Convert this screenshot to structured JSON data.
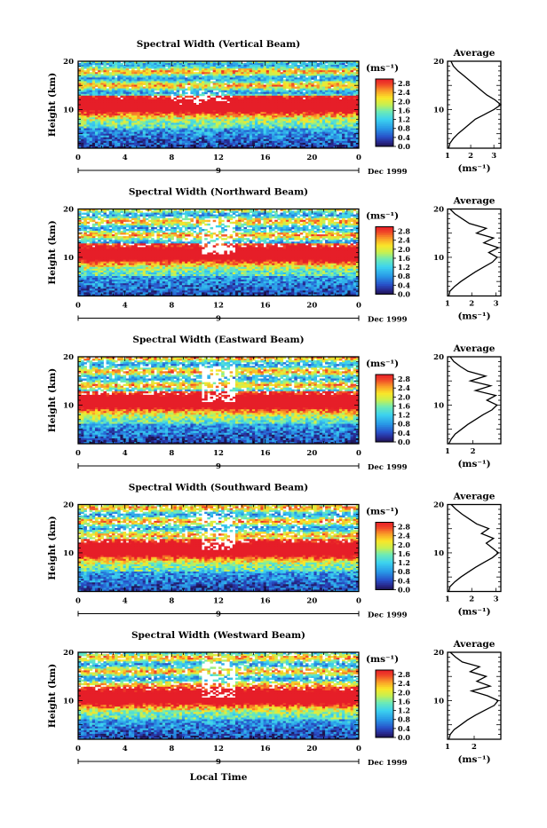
{
  "figure": {
    "x_axis_label": "Local Time",
    "date_label": "Dec 1999",
    "day_marker": "9",
    "y_axis_label": "Height (km)",
    "avg_title": "Average",
    "unit_label": "(ms⁻¹)"
  },
  "chart_data": [
    {
      "type": "heatmap",
      "title": "Spectral Width (Vertical Beam)",
      "x_ticks": [
        "0",
        "4",
        "8",
        "12",
        "16",
        "20",
        "0"
      ],
      "y_ticks": [
        "20",
        "10"
      ],
      "ylim": [
        2,
        20
      ],
      "xlim": [
        0,
        24
      ],
      "colorbar": {
        "labels": [
          "2.8",
          "2.4",
          "2.0",
          "1.6",
          "1.2",
          "0.8",
          "0.4",
          "0.0"
        ],
        "range": [
          0,
          3.0
        ]
      },
      "profile": {
        "title": "Average",
        "xlabel": "(ms⁻¹)",
        "x_ticks": [
          "1",
          "2",
          "3"
        ],
        "xlim": [
          1,
          3.3
        ],
        "height": [
          2,
          3,
          4,
          5,
          6,
          7,
          8,
          9,
          10,
          11,
          12,
          13,
          14,
          15,
          16,
          17,
          18,
          19,
          20
        ],
        "width": [
          1.05,
          1.1,
          1.25,
          1.45,
          1.7,
          1.95,
          2.2,
          2.6,
          3.0,
          3.3,
          3.05,
          2.7,
          2.45,
          2.2,
          1.95,
          1.7,
          1.45,
          1.25,
          1.15
        ]
      }
    },
    {
      "type": "heatmap",
      "title": "Spectral Width (Northward Beam)",
      "x_ticks": [
        "0",
        "4",
        "8",
        "12",
        "16",
        "20",
        "0"
      ],
      "y_ticks": [
        "20",
        "10"
      ],
      "ylim": [
        2,
        20
      ],
      "xlim": [
        0,
        24
      ],
      "colorbar": {
        "labels": [
          "2.8",
          "2.4",
          "2.0",
          "1.6",
          "1.2",
          "0.8",
          "0.4",
          "0.0"
        ],
        "range": [
          0,
          3.0
        ]
      },
      "profile": {
        "title": "Average",
        "xlabel": "(ms⁻¹)",
        "x_ticks": [
          "1",
          "2",
          "3"
        ],
        "xlim": [
          1,
          3.2
        ],
        "height": [
          2,
          3,
          4,
          5,
          6,
          7,
          8,
          9,
          10,
          11,
          12,
          13,
          14,
          15,
          16,
          17,
          18,
          19,
          20
        ],
        "width": [
          1.05,
          1.1,
          1.3,
          1.55,
          1.85,
          2.15,
          2.5,
          2.85,
          3.05,
          2.7,
          3.1,
          2.5,
          2.9,
          2.2,
          2.6,
          1.9,
          1.6,
          1.3,
          1.1
        ]
      }
    },
    {
      "type": "heatmap",
      "title": "Spectral Width (Eastward Beam)",
      "x_ticks": [
        "0",
        "4",
        "8",
        "12",
        "16",
        "20",
        "0"
      ],
      "y_ticks": [
        "20",
        "10"
      ],
      "ylim": [
        2,
        20
      ],
      "xlim": [
        0,
        24
      ],
      "colorbar": {
        "labels": [
          "2.8",
          "2.4",
          "2.0",
          "1.6",
          "1.2",
          "0.8",
          "0.4",
          "0.0"
        ],
        "range": [
          0,
          3.0
        ]
      },
      "profile": {
        "title": "Average",
        "xlabel": "(ms⁻¹)",
        "x_ticks": [
          "1",
          "2"
        ],
        "xlim": [
          1,
          3.1
        ],
        "height": [
          2,
          3,
          4,
          5,
          6,
          7,
          8,
          9,
          10,
          11,
          12,
          13,
          14,
          15,
          16,
          17,
          18,
          19,
          20
        ],
        "width": [
          1.05,
          1.15,
          1.3,
          1.55,
          1.8,
          2.1,
          2.4,
          2.75,
          2.95,
          2.55,
          2.9,
          2.1,
          2.7,
          1.9,
          2.5,
          1.8,
          1.5,
          1.25,
          1.1
        ]
      }
    },
    {
      "type": "heatmap",
      "title": "Spectral Width (Southward Beam)",
      "x_ticks": [
        "0",
        "4",
        "8",
        "12",
        "16",
        "20",
        "0"
      ],
      "y_ticks": [
        "20",
        "10"
      ],
      "ylim": [
        2,
        20
      ],
      "xlim": [
        0,
        24
      ],
      "colorbar": {
        "labels": [
          "2.8",
          "2.4",
          "2.0",
          "1.6",
          "1.2",
          "0.8",
          "0.4",
          "0.0"
        ],
        "range": [
          0,
          3.0
        ]
      },
      "profile": {
        "title": "Average",
        "xlabel": "(ms⁻¹)",
        "x_ticks": [
          "1",
          "2",
          "3"
        ],
        "xlim": [
          1,
          3.2
        ],
        "height": [
          2,
          3,
          4,
          5,
          6,
          7,
          8,
          9,
          10,
          11,
          12,
          13,
          14,
          15,
          16,
          17,
          18,
          19,
          20
        ],
        "width": [
          1.05,
          1.1,
          1.3,
          1.55,
          1.85,
          2.15,
          2.5,
          2.85,
          3.1,
          2.85,
          2.6,
          2.9,
          2.4,
          2.7,
          2.2,
          1.9,
          1.6,
          1.35,
          1.15
        ]
      }
    },
    {
      "type": "heatmap",
      "title": "Spectral Width (Westward Beam)",
      "x_ticks": [
        "0",
        "4",
        "8",
        "12",
        "16",
        "20",
        "0"
      ],
      "y_ticks": [
        "20",
        "10"
      ],
      "ylim": [
        2,
        20
      ],
      "xlim": [
        0,
        24
      ],
      "colorbar": {
        "labels": [
          "2.8",
          "2.4",
          "2.0",
          "1.6",
          "1.2",
          "0.8",
          "0.4",
          "0.0"
        ],
        "range": [
          0,
          3.0
        ]
      },
      "profile": {
        "title": "Average",
        "xlabel": "(ms⁻¹)",
        "x_ticks": [
          "1",
          "2"
        ],
        "xlim": [
          1,
          3.0
        ],
        "height": [
          2,
          3,
          4,
          5,
          6,
          7,
          8,
          9,
          10,
          11,
          12,
          13,
          14,
          15,
          16,
          17,
          18,
          19,
          20
        ],
        "width": [
          1.05,
          1.1,
          1.25,
          1.5,
          1.75,
          2.05,
          2.4,
          2.75,
          2.9,
          2.5,
          1.9,
          2.6,
          2.1,
          2.45,
          1.85,
          2.2,
          1.55,
          1.3,
          1.1
        ]
      }
    }
  ]
}
